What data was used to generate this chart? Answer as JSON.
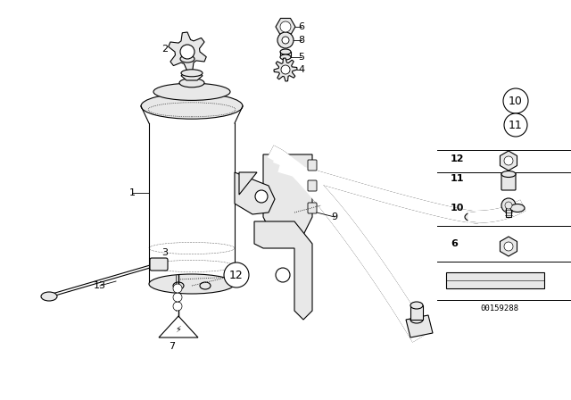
{
  "background_color": "#ffffff",
  "image_id": "00159288",
  "line_color": "#000000",
  "fill_color": "#ffffff",
  "shade_color": "#e8e8e8"
}
